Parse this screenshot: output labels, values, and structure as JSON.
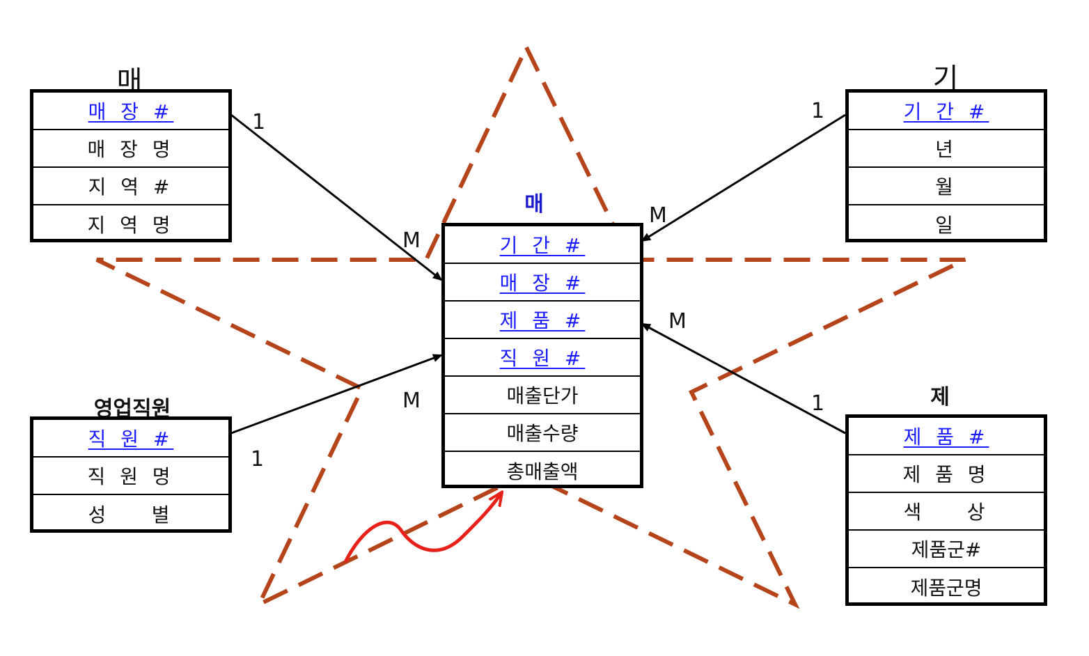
{
  "entities": {
    "store": {
      "title": "매 장",
      "rows": [
        "매 장 #",
        "매 장 명",
        "지 역 #",
        "지 역 명"
      ],
      "keys": [
        true,
        false,
        false,
        false
      ]
    },
    "period": {
      "title": "기 간",
      "rows": [
        "기 간 #",
        "년",
        "월",
        "일"
      ],
      "keys": [
        true,
        false,
        false,
        false
      ]
    },
    "sales": {
      "title": "매 출",
      "rows": [
        "기 간 #",
        "매 장 #",
        "제 품 #",
        "직 원 #",
        "매출단가",
        "매출수량",
        "총매출액"
      ],
      "keys": [
        true,
        true,
        true,
        true,
        false,
        false,
        false
      ]
    },
    "employee": {
      "title": "영업직원",
      "rows": [
        "직 원 #",
        "직 원 명",
        "성    별"
      ],
      "keys": [
        true,
        false,
        false
      ]
    },
    "product": {
      "title": "제 품",
      "rows": [
        "제 품 #",
        "제 품 명",
        "색    상",
        "제품군#",
        "제품군명"
      ],
      "keys": [
        true,
        false,
        false,
        false,
        false
      ]
    }
  },
  "cardinalities": {
    "store_one": "1",
    "store_many": "M",
    "period_one": "1",
    "period_many": "M",
    "employee_one": "1",
    "employee_many": "M",
    "product_one": "1",
    "product_many": "M"
  },
  "colors": {
    "star": "#b5441a",
    "arrow": "#e8201a",
    "key_text": "#1a1aff"
  }
}
